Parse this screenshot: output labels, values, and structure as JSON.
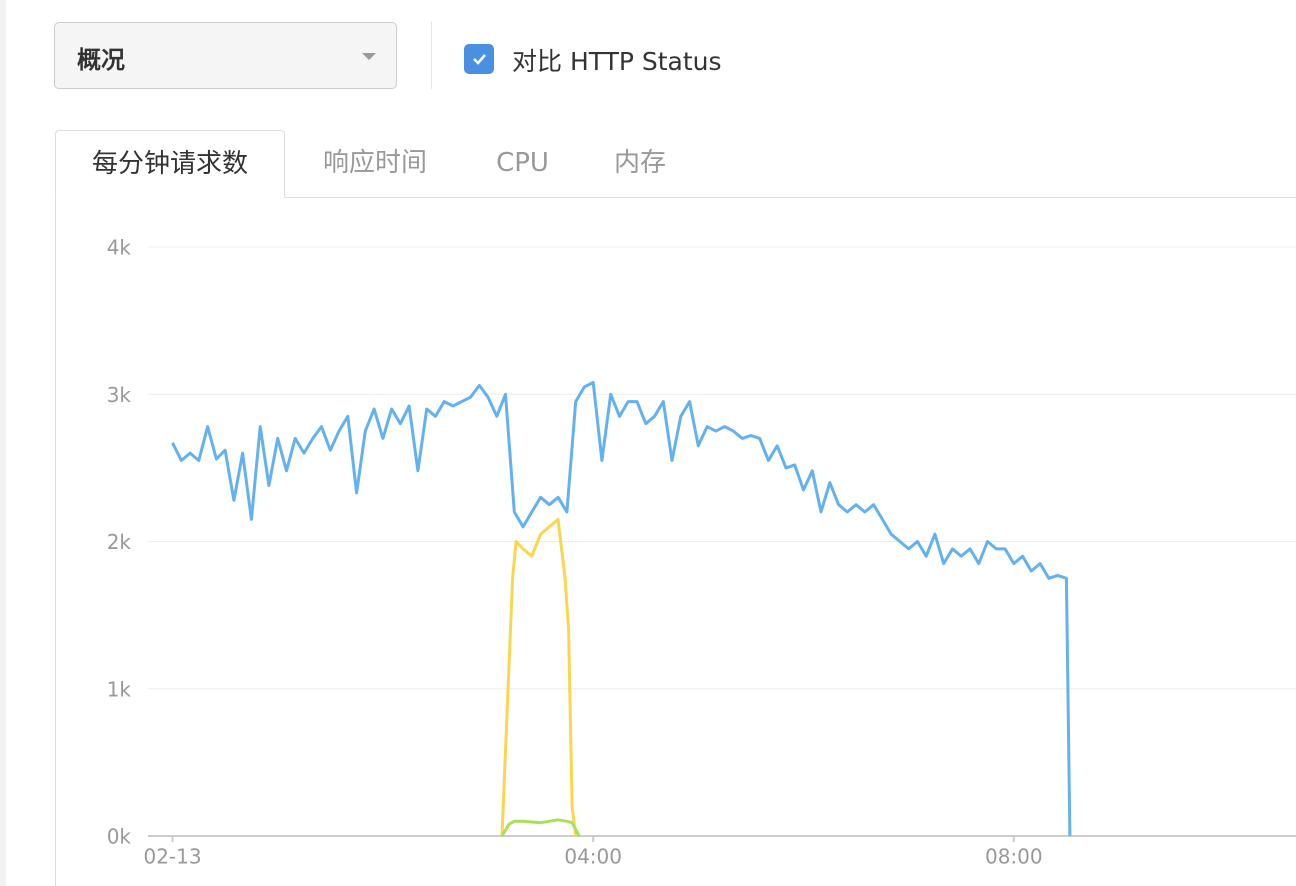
{
  "ui": {
    "dropdown": "概况",
    "checkbox": {
      "label": "对比 HTTP Status",
      "checked": true
    },
    "tabs": [
      "每分钟请求数",
      "响应时间",
      "CPU",
      "内存"
    ],
    "active_tab": 0
  },
  "chart_data": {
    "type": "line",
    "xlim": [
      -14,
      641
    ],
    "ylim": [
      0,
      4000
    ],
    "xticks": [
      {
        "value": 0,
        "label": "02-13"
      },
      {
        "value": 240,
        "label": "04:00"
      },
      {
        "value": 480,
        "label": "08:00"
      }
    ],
    "yticks": [
      {
        "value": 0,
        "label": "0k"
      },
      {
        "value": 1000,
        "label": "1k"
      },
      {
        "value": 2000,
        "label": "2k"
      },
      {
        "value": 3000,
        "label": "3k"
      },
      {
        "value": 4000,
        "label": "4k"
      }
    ],
    "grid": true,
    "series": [
      {
        "color": "#63b1f0",
        "x": [
          0,
          5,
          10,
          15,
          20,
          25,
          30,
          35,
          40,
          45,
          50,
          55,
          60,
          65,
          70,
          75,
          80,
          85,
          90,
          95,
          100,
          105,
          110,
          115,
          120,
          125,
          130,
          135,
          140,
          145,
          150,
          155,
          160,
          165,
          170,
          175,
          180,
          185,
          190,
          195,
          200,
          205,
          210,
          215,
          220,
          225,
          230,
          235,
          240,
          245,
          250,
          255,
          260,
          265,
          270,
          275,
          280,
          285,
          290,
          295,
          300,
          305,
          310,
          315,
          320,
          325,
          330,
          335,
          340,
          345,
          350,
          355,
          360,
          365,
          370,
          375,
          380,
          385,
          390,
          395,
          400,
          405,
          410,
          415,
          420,
          425,
          430,
          435,
          440,
          445,
          450,
          455,
          460,
          465,
          470,
          475,
          480,
          485,
          490,
          495,
          500,
          505,
          510,
          512
        ],
        "values": [
          2670,
          2550,
          2600,
          2550,
          2780,
          2560,
          2620,
          2280,
          2600,
          2150,
          2780,
          2380,
          2700,
          2480,
          2700,
          2600,
          2700,
          2780,
          2620,
          2750,
          2850,
          2330,
          2750,
          2900,
          2700,
          2900,
          2800,
          2920,
          2480,
          2900,
          2850,
          2950,
          2920,
          2950,
          2980,
          3060,
          2980,
          2850,
          3000,
          2200,
          2100,
          2200,
          2300,
          2250,
          2300,
          2200,
          2950,
          3050,
          3080,
          2550,
          3000,
          2850,
          2950,
          2950,
          2800,
          2850,
          2950,
          2550,
          2850,
          2950,
          2650,
          2780,
          2750,
          2780,
          2750,
          2700,
          2720,
          2700,
          2550,
          2650,
          2500,
          2520,
          2350,
          2480,
          2200,
          2400,
          2250,
          2200,
          2250,
          2200,
          2250,
          2150,
          2050,
          2000,
          1950,
          2000,
          1900,
          2050,
          1850,
          1950,
          1900,
          1950,
          1850,
          2000,
          1950,
          1950,
          1850,
          1900,
          1800,
          1850,
          1750,
          1770,
          1750,
          0
        ]
      },
      {
        "color": "#fad650",
        "x": [
          188,
          194,
          196,
          200,
          205,
          210,
          215,
          220,
          224,
          226,
          228,
          230
        ],
        "values": [
          0,
          1750,
          2000,
          1950,
          1900,
          2050,
          2100,
          2150,
          1750,
          1400,
          200,
          0
        ]
      },
      {
        "color": "#a8e05a",
        "x": [
          188,
          192,
          195,
          200,
          210,
          220,
          225,
          228,
          232
        ],
        "values": [
          0,
          80,
          100,
          100,
          90,
          110,
          100,
          90,
          0
        ]
      }
    ]
  }
}
